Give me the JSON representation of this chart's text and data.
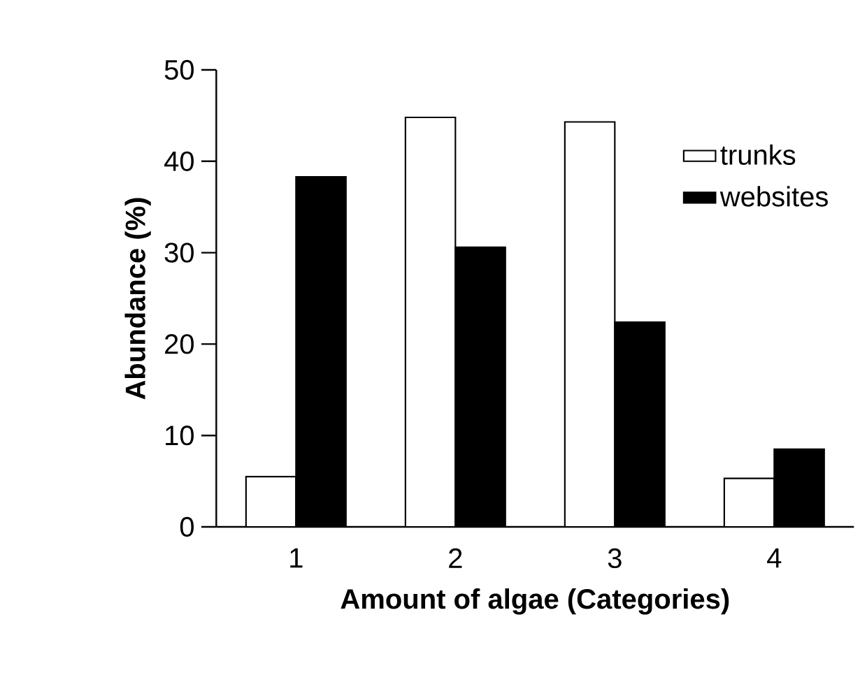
{
  "chart_data": {
    "type": "bar",
    "xlabel": "Amount of algae (Categories)",
    "ylabel": "Abundance (%)",
    "categories": [
      "1",
      "2",
      "3",
      "4"
    ],
    "series": [
      {
        "name": "trunks",
        "color": "#ffffff",
        "values": [
          5.5,
          44.8,
          44.3,
          5.3
        ]
      },
      {
        "name": "websites",
        "color": "#000000",
        "values": [
          38.3,
          30.6,
          22.4,
          8.5
        ]
      }
    ],
    "ylim": [
      0,
      50
    ],
    "yticks": [
      0,
      10,
      20,
      30,
      40,
      50
    ],
    "legend": "top right"
  }
}
